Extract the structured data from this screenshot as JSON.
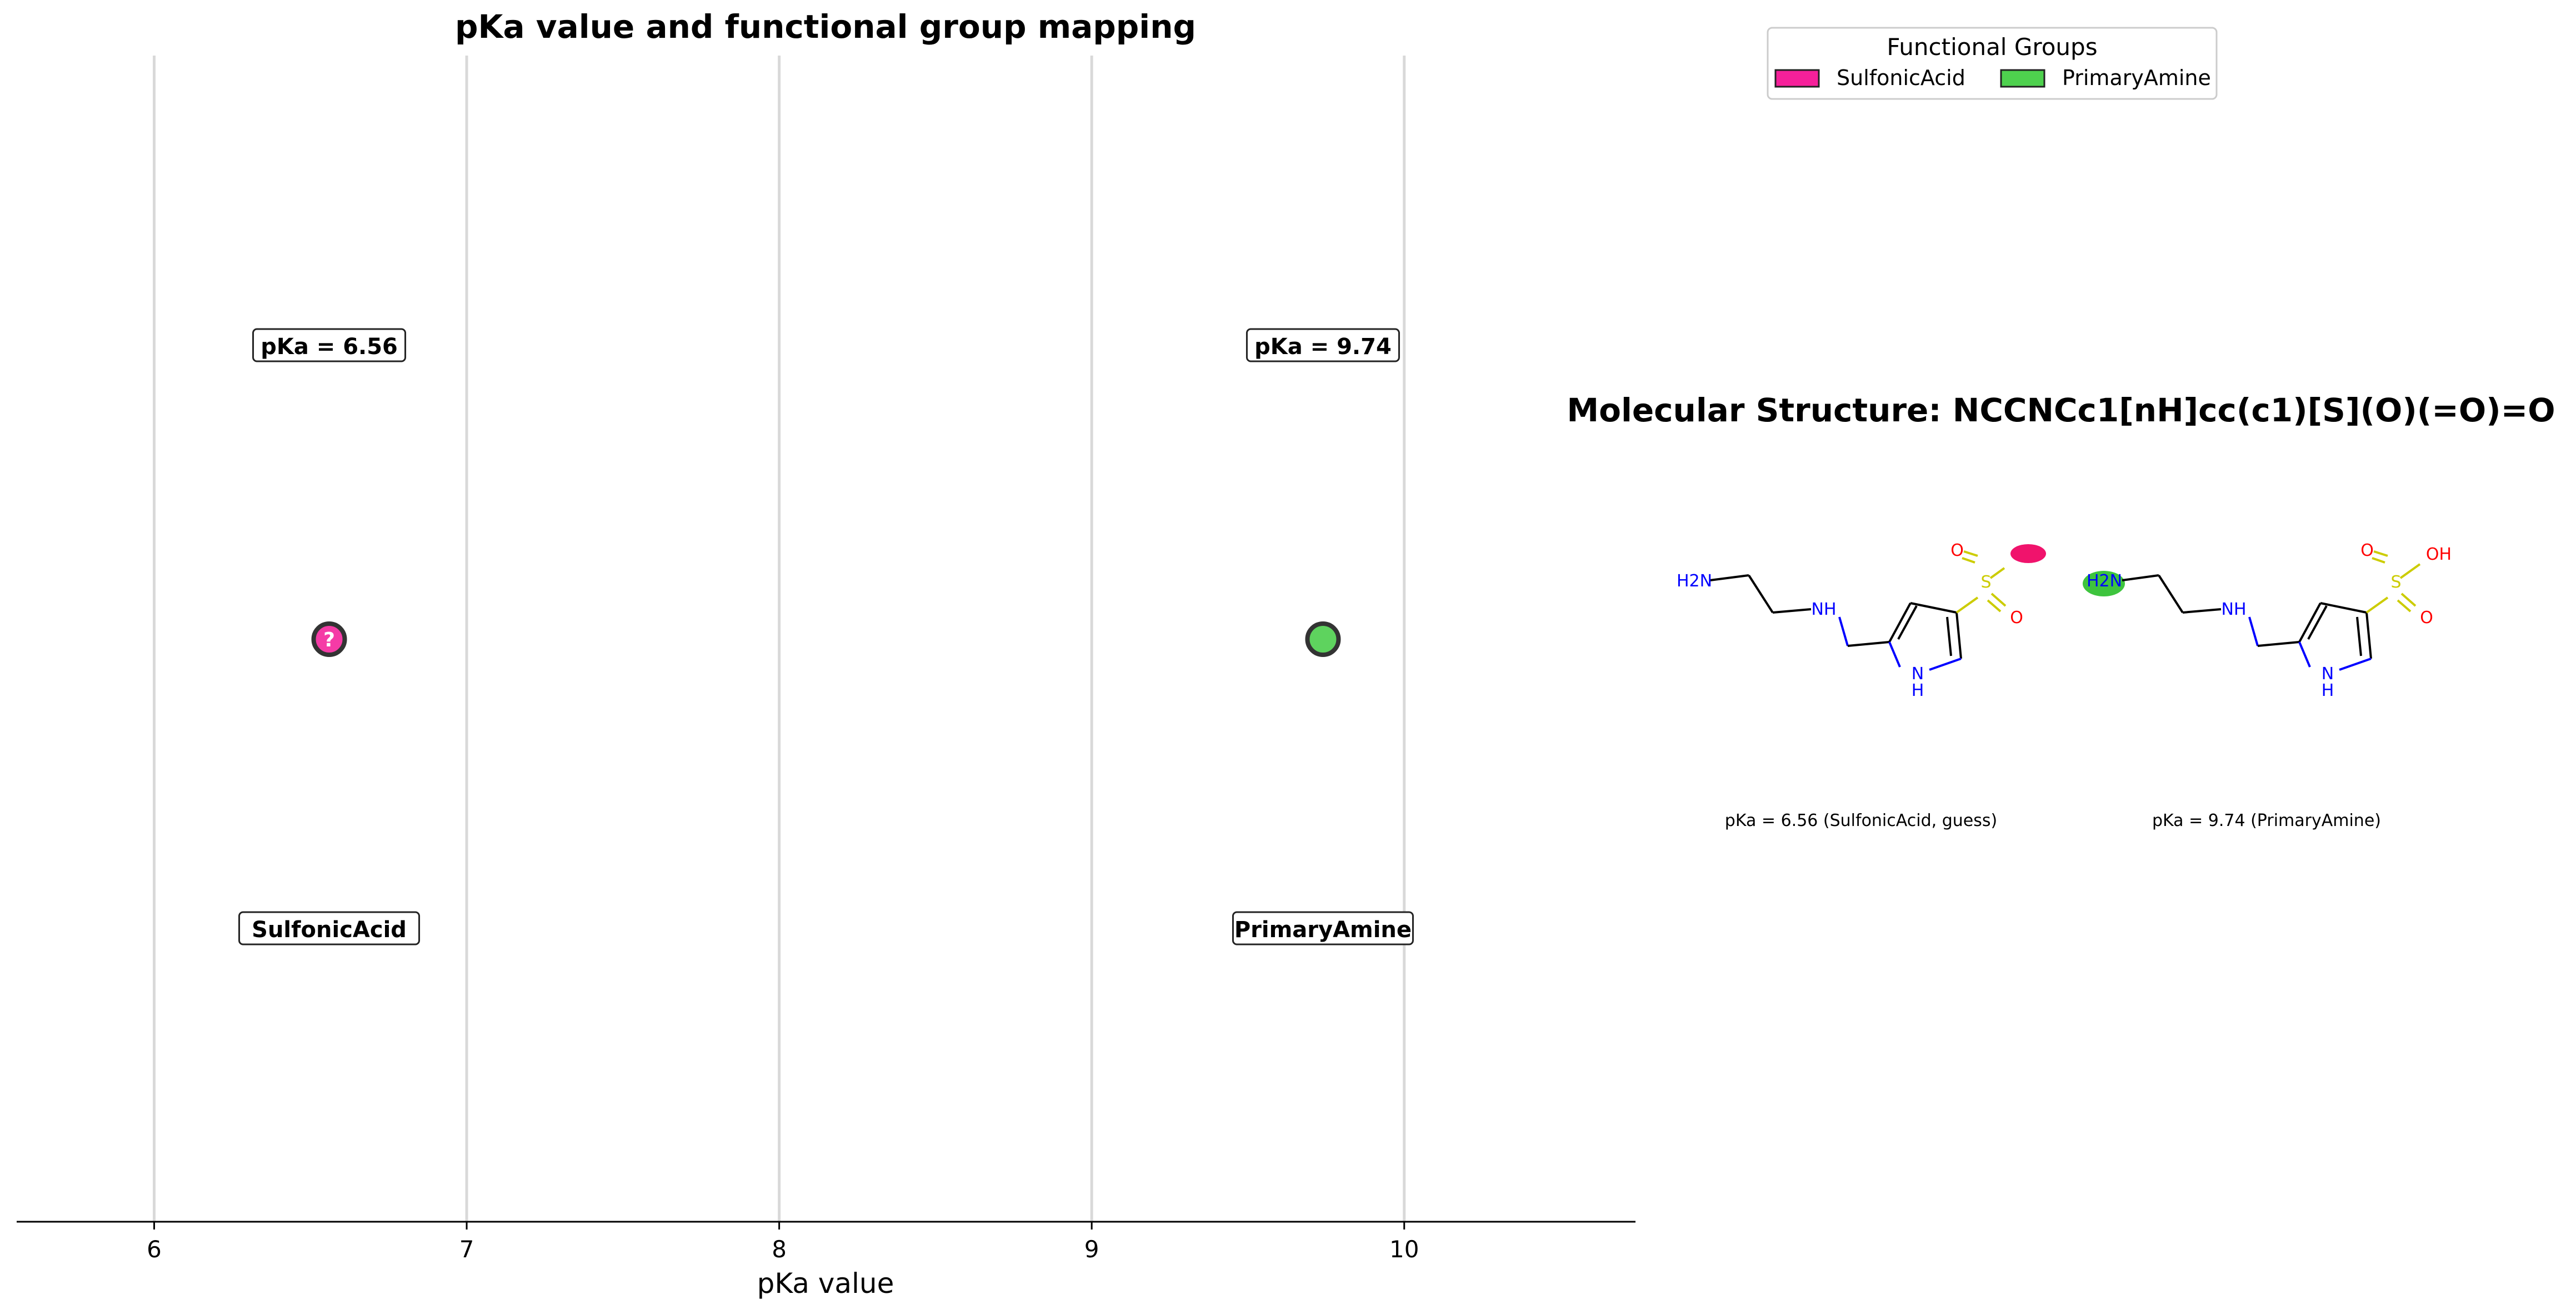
{
  "chart_data": {
    "type": "scatter",
    "title": "pKa value and functional group mapping",
    "xlabel": "pKa value",
    "ylabel": "",
    "xlim": [
      5.56,
      10.74
    ],
    "xticks": [
      "6",
      "7",
      "8",
      "9",
      "10"
    ],
    "grid": "vertical",
    "points": [
      {
        "pka": 6.56,
        "value_label": "pKa = 6.56",
        "group": "SulfonicAcid",
        "marker": "?",
        "color": "#f53ba6"
      },
      {
        "pka": 9.74,
        "value_label": "pKa = 9.74",
        "group": "PrimaryAmine",
        "marker": "",
        "color": "#5ed35e"
      }
    ]
  },
  "legend": {
    "title": "Functional Groups",
    "placement": "top-right",
    "items": [
      {
        "label": "SulfonicAcid",
        "color": "#f5209a"
      },
      {
        "label": "PrimaryAmine",
        "color": "#4ed14e"
      }
    ]
  },
  "molecule": {
    "title": "Molecular Structure: NCCNCc1[nH]cc(c1)[S](O)(=O)=O",
    "atoms": {
      "amine": "H2N",
      "nh": "NH",
      "ring_n": "N",
      "ring_h": "H",
      "s": "S",
      "o": "O",
      "oh": "OH"
    },
    "panels": [
      {
        "caption": "pKa = 6.56 (SulfonicAcid, guess)",
        "highlight": "sulfonic",
        "highlight_color": "#f0136c"
      },
      {
        "caption": "pKa = 9.74 (PrimaryAmine)",
        "highlight": "amine",
        "highlight_color": "#3ec43e"
      }
    ]
  },
  "colors": {
    "atom_n": "#0000ff",
    "atom_o": "#ff0000",
    "atom_s": "#cccc00",
    "bond": "#000000",
    "grid": "#d9d9d9"
  }
}
